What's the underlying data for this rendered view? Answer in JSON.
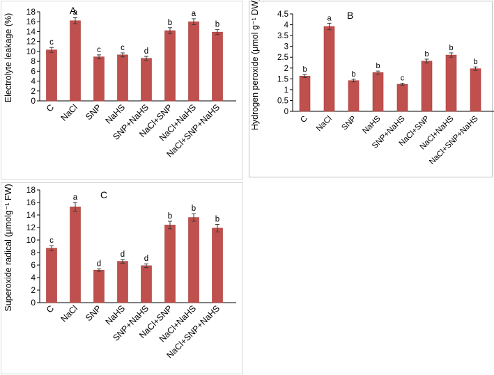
{
  "colors": {
    "bar": "#c0504d",
    "bar_edge": "#a53a36",
    "axis": "#000000",
    "error_bar": "#3a3a3a"
  },
  "chart_data": [
    {
      "panel": "A",
      "type": "bar",
      "title": "",
      "panel_label": "A",
      "xlabel": "",
      "ylabel": "Electrolyte leakage (%)",
      "ylim": [
        0,
        18
      ],
      "yticks": [
        0,
        2,
        4,
        6,
        8,
        10,
        12,
        14,
        16,
        18
      ],
      "grid": false,
      "categories": [
        "C",
        "NaCl",
        "SNP",
        "NaHS",
        "SNP+NaHS",
        "NaCl+SNP",
        "NaCl+NaHS",
        "NaCl+SNP+NaHS"
      ],
      "values": [
        10.3,
        16.2,
        8.9,
        9.3,
        8.6,
        14.2,
        16.0,
        13.9
      ],
      "errors": [
        0.5,
        0.6,
        0.4,
        0.4,
        0.4,
        0.6,
        0.6,
        0.5
      ],
      "letters": [
        "c",
        "a",
        "c",
        "c",
        "d",
        "b",
        "a",
        "b"
      ]
    },
    {
      "panel": "B",
      "type": "bar",
      "title": "",
      "panel_label": "B",
      "xlabel": "",
      "ylabel": "Hydrogen peroxide (μmol g⁻¹ DW)",
      "ylim": [
        0,
        4.5
      ],
      "yticks": [
        0,
        0.5,
        1,
        1.5,
        2,
        2.5,
        3,
        3.5,
        4,
        4.5
      ],
      "grid": false,
      "categories": [
        "C",
        "NaCl",
        "SNP",
        "NaHS",
        "SNP+NaHS",
        "NaCl+SNP",
        "NaCl+NaHS",
        "NaCl+SNP+NaHS"
      ],
      "values": [
        1.63,
        3.92,
        1.42,
        1.79,
        1.25,
        2.32,
        2.6,
        1.97
      ],
      "errors": [
        0.07,
        0.15,
        0.06,
        0.07,
        0.05,
        0.09,
        0.1,
        0.08
      ],
      "letters": [
        "b",
        "a",
        "b",
        "b",
        "c",
        "b",
        "b",
        "b"
      ]
    },
    {
      "panel": "C",
      "type": "bar",
      "title": "",
      "panel_label": "C",
      "xlabel": "",
      "ylabel": "Superoxide radical (μmolg⁻¹ FW)",
      "ylim": [
        0,
        18
      ],
      "yticks": [
        0,
        2,
        4,
        6,
        8,
        10,
        12,
        14,
        16,
        18
      ],
      "grid": false,
      "categories": [
        "C",
        "NaCl",
        "SNP",
        "NaHS",
        "SNP+NaHS",
        "NaCl+SNP",
        "NaCl+NaHS",
        "NaCl+SNP+NaHS"
      ],
      "values": [
        8.7,
        15.3,
        5.2,
        6.6,
        5.9,
        12.4,
        13.6,
        11.9
      ],
      "errors": [
        0.4,
        0.7,
        0.2,
        0.3,
        0.3,
        0.6,
        0.6,
        0.6
      ],
      "letters": [
        "c",
        "a",
        "d",
        "d",
        "d",
        "b",
        "b",
        "b"
      ]
    }
  ]
}
